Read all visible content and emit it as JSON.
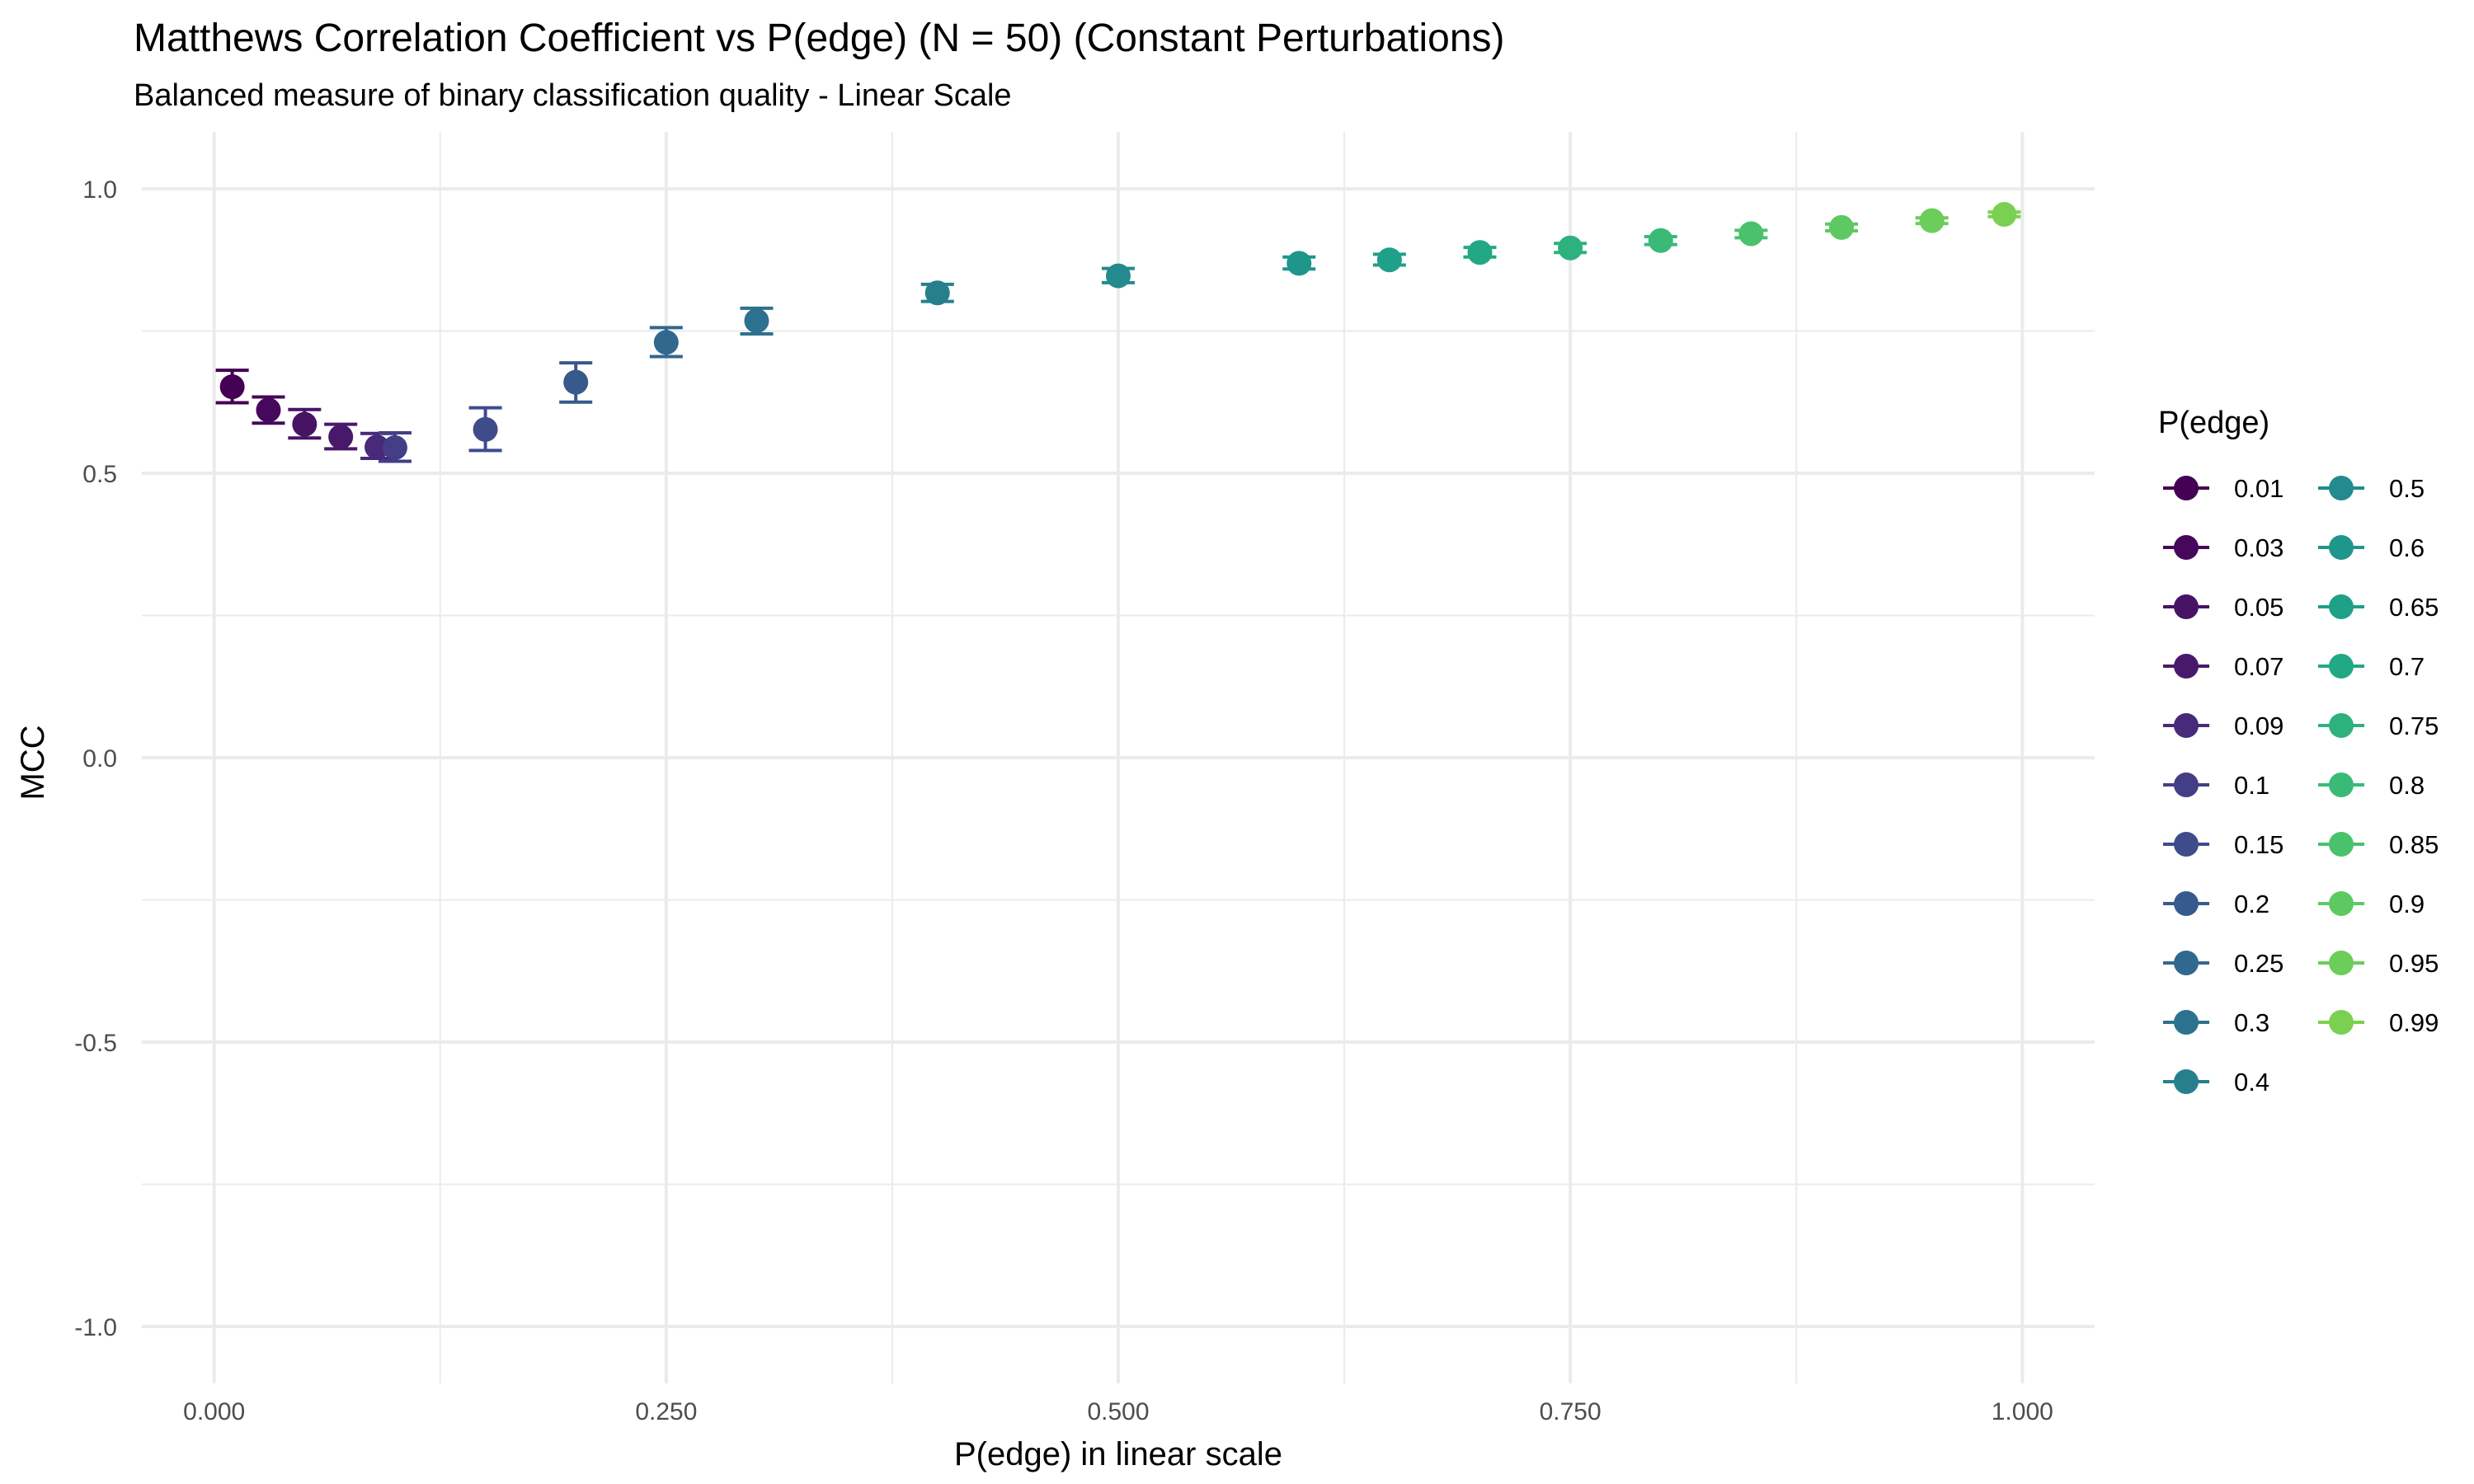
{
  "chart_data": {
    "type": "scatter",
    "title": "Matthews Correlation Coefficient vs P(edge) (N = 50) (Constant Perturbations)",
    "subtitle": "Balanced measure of binary classification quality - Linear Scale",
    "xlabel": "P(edge) in linear scale",
    "ylabel": "MCC",
    "xlim": [
      -0.04,
      1.04
    ],
    "ylim": [
      -1.1,
      1.1
    ],
    "x_ticks": [
      0,
      0.25,
      0.5,
      0.75,
      1.0
    ],
    "x_tick_labels": [
      "0.000",
      "0.250",
      "0.500",
      "0.750",
      "1.000"
    ],
    "y_ticks": [
      -1.0,
      -0.5,
      0.0,
      0.5,
      1.0
    ],
    "y_tick_labels": [
      "-1.0",
      "-0.5",
      "0.0",
      "0.5",
      "1.0"
    ],
    "grid": true,
    "error_bars": true,
    "legend_title": "P(edge)",
    "legend_position": "right",
    "series": [
      {
        "name": "0.01",
        "x": 0.01,
        "y": 0.652,
        "lo": 0.624,
        "hi": 0.681,
        "color": "#440154"
      },
      {
        "name": "0.03",
        "x": 0.03,
        "y": 0.611,
        "lo": 0.588,
        "hi": 0.634,
        "color": "#46085c"
      },
      {
        "name": "0.05",
        "x": 0.05,
        "y": 0.586,
        "lo": 0.562,
        "hi": 0.612,
        "color": "#471365"
      },
      {
        "name": "0.07",
        "x": 0.07,
        "y": 0.564,
        "lo": 0.543,
        "hi": 0.586,
        "color": "#48186a"
      },
      {
        "name": "0.09",
        "x": 0.09,
        "y": 0.546,
        "lo": 0.526,
        "hi": 0.57,
        "color": "#472a7a"
      },
      {
        "name": "0.1",
        "x": 0.1,
        "y": 0.545,
        "lo": 0.521,
        "hi": 0.571,
        "color": "#433e85"
      },
      {
        "name": "0.15",
        "x": 0.15,
        "y": 0.577,
        "lo": 0.54,
        "hi": 0.615,
        "color": "#3e4c8a"
      },
      {
        "name": "0.2",
        "x": 0.2,
        "y": 0.66,
        "lo": 0.625,
        "hi": 0.694,
        "color": "#375a8c"
      },
      {
        "name": "0.25",
        "x": 0.25,
        "y": 0.73,
        "lo": 0.705,
        "hi": 0.756,
        "color": "#31688e"
      },
      {
        "name": "0.3",
        "x": 0.3,
        "y": 0.768,
        "lo": 0.745,
        "hi": 0.79,
        "color": "#2c728e"
      },
      {
        "name": "0.4",
        "x": 0.4,
        "y": 0.817,
        "lo": 0.802,
        "hi": 0.832,
        "color": "#277f8e"
      },
      {
        "name": "0.5",
        "x": 0.5,
        "y": 0.847,
        "lo": 0.835,
        "hi": 0.86,
        "color": "#238a8d"
      },
      {
        "name": "0.6",
        "x": 0.6,
        "y": 0.869,
        "lo": 0.859,
        "hi": 0.88,
        "color": "#1f968b"
      },
      {
        "name": "0.65",
        "x": 0.65,
        "y": 0.875,
        "lo": 0.866,
        "hi": 0.885,
        "color": "#1fa088"
      },
      {
        "name": "0.7",
        "x": 0.7,
        "y": 0.888,
        "lo": 0.88,
        "hi": 0.897,
        "color": "#22a884"
      },
      {
        "name": "0.75",
        "x": 0.75,
        "y": 0.896,
        "lo": 0.888,
        "hi": 0.904,
        "color": "#2db27d"
      },
      {
        "name": "0.8",
        "x": 0.8,
        "y": 0.909,
        "lo": 0.902,
        "hi": 0.916,
        "color": "#3aba76"
      },
      {
        "name": "0.85",
        "x": 0.85,
        "y": 0.921,
        "lo": 0.914,
        "hi": 0.927,
        "color": "#4ac16d"
      },
      {
        "name": "0.9",
        "x": 0.9,
        "y": 0.932,
        "lo": 0.926,
        "hi": 0.938,
        "color": "#5ec962"
      },
      {
        "name": "0.95",
        "x": 0.95,
        "y": 0.944,
        "lo": 0.939,
        "hi": 0.949,
        "color": "#6ccd5a"
      },
      {
        "name": "0.99",
        "x": 0.99,
        "y": 0.955,
        "lo": 0.951,
        "hi": 0.959,
        "color": "#7ad151"
      }
    ]
  }
}
